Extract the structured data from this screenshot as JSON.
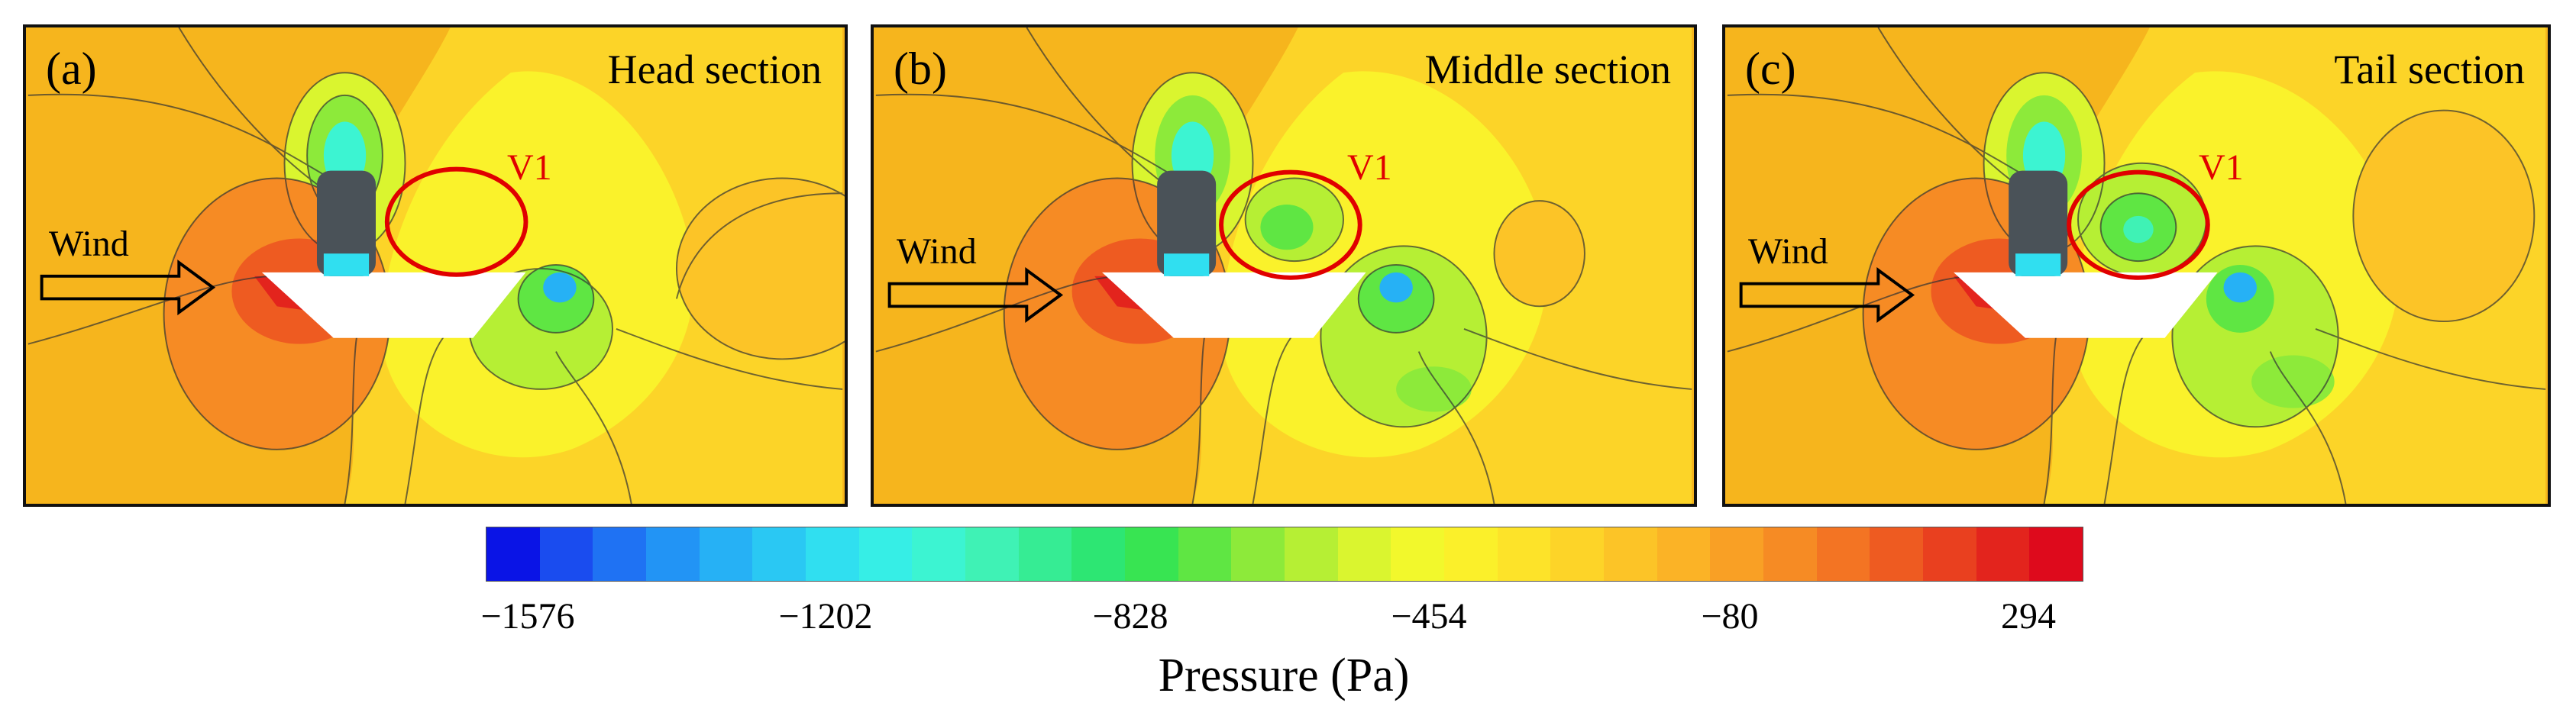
{
  "panels": [
    {
      "label": "(a)",
      "title": "Head section",
      "vortex": "V1",
      "wind": "Wind"
    },
    {
      "label": "(b)",
      "title": "Middle section",
      "vortex": "V1",
      "wind": "Wind"
    },
    {
      "label": "(c)",
      "title": "Tail section",
      "vortex": "V1",
      "wind": "Wind"
    }
  ],
  "colorbar": {
    "title": "Pressure (Pa)",
    "ticks": [
      "−1576",
      "−1202",
      "−828",
      "−454",
      "−80",
      "294"
    ],
    "min": -1576,
    "max": 294,
    "levels": 30,
    "colors": [
      "#0a14e6",
      "#1a4cef",
      "#1f72f3",
      "#2294f5",
      "#26b1f5",
      "#2ac8f3",
      "#30dff0",
      "#36eee6",
      "#3cf4d2",
      "#3ff2b5",
      "#36ec94",
      "#2de673",
      "#38e452",
      "#5fe643",
      "#8dea3a",
      "#b6ef34",
      "#daf52f",
      "#f2f82c",
      "#fbf02a",
      "#fde329",
      "#fdd428",
      "#fcc427",
      "#fbb326",
      "#f9a025",
      "#f68b24",
      "#f37423",
      "#ee5b21",
      "#e9401f",
      "#e3241d",
      "#de0a1c"
    ]
  },
  "colors": {
    "background_field": "#f6b51d",
    "vortex_circle": "#e00000",
    "train_body": "#4a5258"
  }
}
